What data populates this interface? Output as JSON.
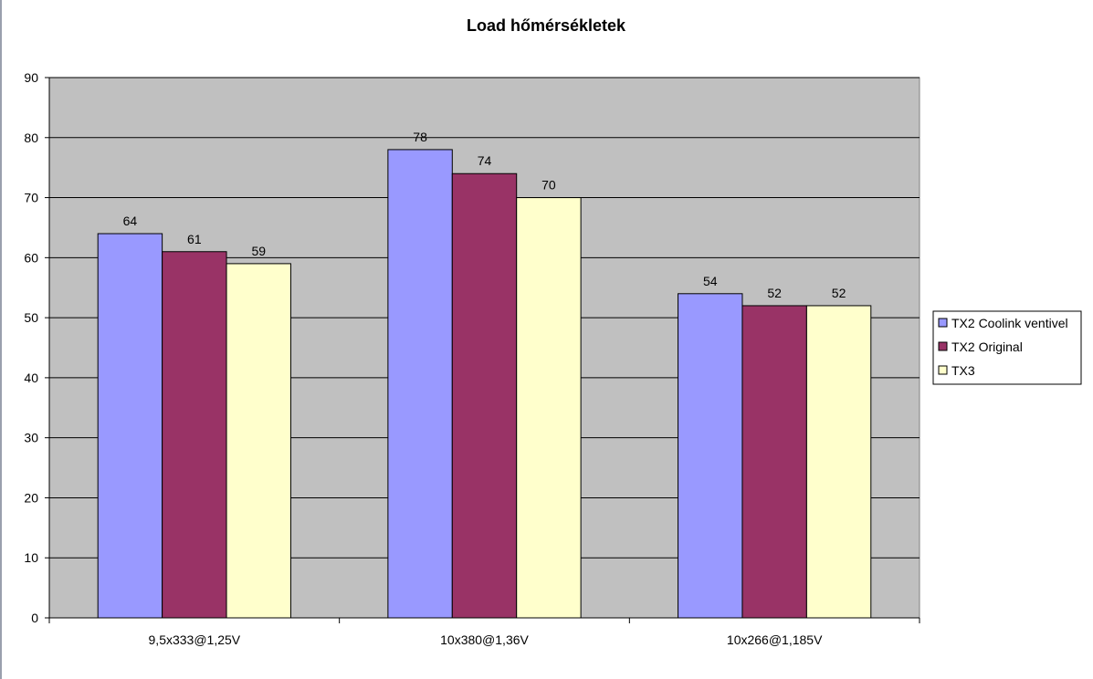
{
  "chart_data": {
    "type": "bar",
    "title": "Load hőmérsékletek",
    "xlabel": "",
    "ylabel": "",
    "categories": [
      "9,5x333@1,25V",
      "10x380@1,36V",
      "10x266@1,185V"
    ],
    "series": [
      {
        "name": "TX2 Coolink ventivel",
        "values": [
          64,
          78,
          54
        ],
        "color": "#9999ff"
      },
      {
        "name": "TX2 Original",
        "values": [
          61,
          74,
          52
        ],
        "color": "#993366"
      },
      {
        "name": "TX3",
        "values": [
          59,
          70,
          52
        ],
        "color": "#ffffcc"
      }
    ],
    "ylim": [
      0,
      90
    ],
    "yticks": [
      0,
      10,
      20,
      30,
      40,
      50,
      60,
      70,
      80,
      90
    ],
    "grid": true,
    "data_labels": true,
    "legend_position": "right",
    "plot_background": "#c0c0c0"
  }
}
